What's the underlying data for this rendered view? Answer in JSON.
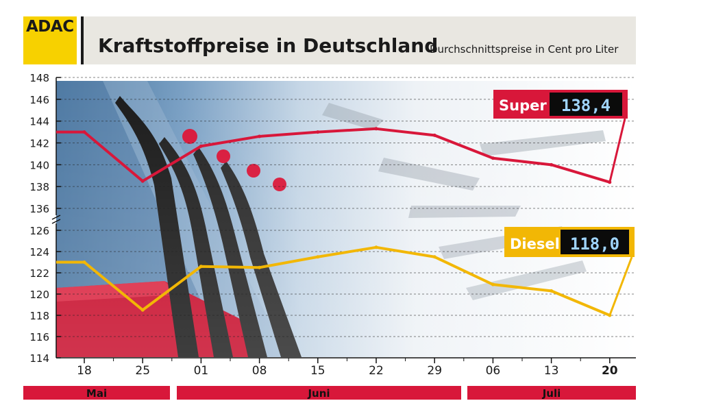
{
  "header": {
    "logo_text": "ADAC",
    "title": "Kraftstoffpreise in Deutschland",
    "subtitle": "Durchschnittspreise in Cent pro Liter"
  },
  "colors": {
    "super": "#d8173a",
    "diesel": "#f2b705",
    "logo": "#f7d100",
    "month_bar": "#d8173a"
  },
  "chart_data": {
    "type": "line",
    "title": "Kraftstoffpreise in Deutschland",
    "subtitle": "Durchschnittspreise in Cent pro Liter",
    "x": [
      "18",
      "25",
      "01",
      "08",
      "15",
      "22",
      "29",
      "06",
      "13",
      "20"
    ],
    "months": [
      {
        "label": "Mai",
        "span": [
          "18",
          "25"
        ]
      },
      {
        "label": "Juni",
        "span": [
          "01",
          "29"
        ]
      },
      {
        "label": "Juli",
        "span": [
          "06",
          "20"
        ]
      }
    ],
    "y_axis": {
      "upper_segment": {
        "range": [
          136,
          148
        ],
        "ticks": [
          "136",
          "138",
          "140",
          "142",
          "144",
          "146",
          "148"
        ]
      },
      "lower_segment": {
        "range": [
          114,
          126
        ],
        "ticks": [
          "114",
          "116",
          "118",
          "120",
          "122",
          "124",
          "126"
        ]
      },
      "broken": true
    },
    "series": [
      {
        "name": "Super",
        "values": [
          143.0,
          138.5,
          141.7,
          142.6,
          143.0,
          143.3,
          142.7,
          140.6,
          140.0,
          138.4
        ],
        "current_display": "138,4"
      },
      {
        "name": "Diesel",
        "values": [
          123.0,
          118.5,
          122.6,
          122.5,
          123.5,
          124.4,
          123.5,
          120.9,
          120.3,
          118.0
        ],
        "current_display": "118,0"
      }
    ],
    "grid": true
  }
}
